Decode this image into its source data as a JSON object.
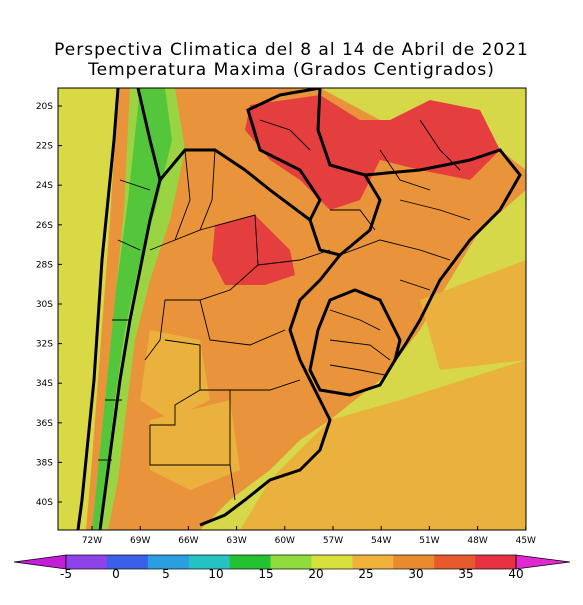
{
  "title_line1": "Perspectiva Climatica del 8 al 14 de Abril de 2021",
  "title_line2": "Temperatura Maxima (Grados Centigrados)",
  "lat_labels": [
    "20S",
    "22S",
    "24S",
    "26S",
    "28S",
    "30S",
    "32S",
    "34S",
    "36S",
    "38S",
    "40S"
  ],
  "lon_labels": [
    "72W",
    "69W",
    "66W",
    "63W",
    "60W",
    "57W",
    "54W",
    "51W",
    "48W",
    "45W"
  ],
  "colorbar": {
    "labels": [
      "-5",
      "0",
      "5",
      "10",
      "15",
      "20",
      "25",
      "30",
      "35",
      "40"
    ],
    "colors": [
      "#c21ed8",
      "#8d43e8",
      "#3a5fe8",
      "#2a9ee0",
      "#24c2c2",
      "#22c233",
      "#8fdc3c",
      "#d8e03c",
      "#f0b23a",
      "#ea8a2e",
      "#e65a2e",
      "#e83244",
      "#e02ad0"
    ]
  },
  "map_colors": {
    "land_warm": "#e9943a",
    "land_hot": "#e53e3e",
    "land_mild": "#d9d845",
    "land_mid": "#eab23c",
    "andes_green": "#54c63c",
    "andes_light": "#9bd443",
    "ocean": "#d6d84a",
    "border": "#000000"
  }
}
